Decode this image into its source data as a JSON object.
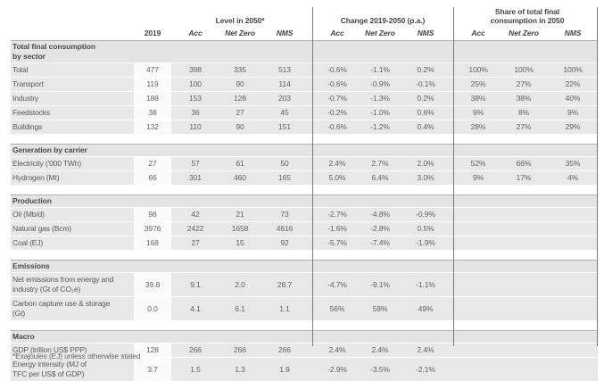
{
  "table": {
    "header": {
      "year_col": "2019",
      "groups": [
        {
          "label": "Level in 2050*",
          "subcols": [
            "Acc",
            "Net Zero",
            "NMS"
          ]
        },
        {
          "label": "Change 2019-2050 (p.a.)",
          "subcols": [
            "Acc",
            "Net Zero",
            "NMS"
          ]
        },
        {
          "label": "Share of total final\nconsumption in 2050",
          "subcols": [
            "Acc",
            "Net Zero",
            "NMS"
          ]
        }
      ]
    },
    "sections": [
      {
        "title": "Total final consumption\nby sector",
        "rows": [
          {
            "label": "Total",
            "y2019": "477",
            "level": [
              "398",
              "335",
              "513"
            ],
            "change": [
              "-0.6%",
              "-1.1%",
              "0.2%"
            ],
            "share": [
              "100%",
              "100%",
              "100%"
            ]
          },
          {
            "label": "Transport",
            "y2019": "119",
            "level": [
              "100",
              "90",
              "114"
            ],
            "change": [
              "-0.6%",
              "-0.9%",
              "-0.1%"
            ],
            "share": [
              "25%",
              "27%",
              "22%"
            ]
          },
          {
            "label": "Industry",
            "y2019": "188",
            "level": [
              "153",
              "128",
              "203"
            ],
            "change": [
              "-0.7%",
              "-1.3%",
              "0.2%"
            ],
            "share": [
              "38%",
              "38%",
              "40%"
            ]
          },
          {
            "label": "Feedstocks",
            "y2019": "38",
            "level": [
              "36",
              "27",
              "45"
            ],
            "change": [
              "-0.2%",
              "-1.0%",
              "0.6%"
            ],
            "share": [
              "9%",
              "8%",
              "9%"
            ]
          },
          {
            "label": "Buildings",
            "y2019": "132",
            "level": [
              "110",
              "90",
              "151"
            ],
            "change": [
              "-0.6%",
              "-1.2%",
              "0.4%"
            ],
            "share": [
              "28%",
              "27%",
              "29%"
            ]
          }
        ]
      },
      {
        "title": "Generation by carrier",
        "rows": [
          {
            "label": "Electricity ('000 TWh)",
            "y2019": "27",
            "level": [
              "57",
              "61",
              "50"
            ],
            "change": [
              "2.4%",
              "2.7%",
              "2.0%"
            ],
            "share": [
              "52%",
              "66%",
              "35%"
            ]
          },
          {
            "label": "Hydrogen (Mt)",
            "y2019": "66",
            "level": [
              "301",
              "460",
              "165"
            ],
            "change": [
              "5.0%",
              "6.4%",
              "3.0%"
            ],
            "share": [
              "9%",
              "17%",
              "4%"
            ]
          }
        ]
      },
      {
        "title": "Production",
        "rows": [
          {
            "label": "Oil (Mb/d)",
            "y2019": "98",
            "level": [
              "42",
              "21",
              "73"
            ],
            "change": [
              "-2.7%",
              "-4.8%",
              "-0.9%"
            ],
            "share": [
              "",
              "",
              ""
            ]
          },
          {
            "label": "Natural gas (Bcm)",
            "y2019": "3976",
            "level": [
              "2422",
              "1658",
              "4616"
            ],
            "change": [
              "-1.6%",
              "-2.8%",
              "0.5%"
            ],
            "share": [
              "",
              "",
              ""
            ]
          },
          {
            "label": "Coal (EJ)",
            "y2019": "168",
            "level": [
              "27",
              "15",
              "92"
            ],
            "change": [
              "-5.7%",
              "-7.4%",
              "-1.9%"
            ],
            "share": [
              "",
              "",
              ""
            ]
          }
        ]
      },
      {
        "title": "Emissions",
        "rows": [
          {
            "label": "Net emissions from energy and\nindustry (Gt of CO₂e)",
            "y2019": "39.8",
            "level": [
              "9.1",
              "2.0",
              "28.7"
            ],
            "change": [
              "-4.7%",
              "-9.1%",
              "-1.1%"
            ],
            "share": [
              "",
              "",
              ""
            ]
          },
          {
            "label": "Carbon capture use & storage\n(Gt)",
            "y2019": "0.0",
            "level": [
              "4.1",
              "6.1",
              "1.1"
            ],
            "change": [
              "56%",
              "58%",
              "49%"
            ],
            "share": [
              "",
              "",
              ""
            ]
          }
        ]
      },
      {
        "title": "Macro",
        "rows": [
          {
            "label": "GDP (trillion US$ PPP)",
            "y2019": "128",
            "level": [
              "266",
              "266",
              "266"
            ],
            "change": [
              "2.4%",
              "2.4%",
              "2.4%"
            ],
            "share": [
              "",
              "",
              ""
            ]
          },
          {
            "label": "Energy intensity (MJ of\nTFC per US$ of GDP)",
            "y2019": "3.7",
            "level": [
              "1.5",
              "1.3",
              "1.9"
            ],
            "change": [
              "-2.9%",
              "-3.5%",
              "-2.1%"
            ],
            "share": [
              "",
              "",
              ""
            ]
          }
        ]
      }
    ],
    "footnote": "*Exajoules (EJ) unless otherwise stated"
  },
  "colors": {
    "row_bg": "#e9e8e6",
    "section_header_bg": "#e5e4e2",
    "year_col_bg": "#fbfbf9",
    "divider": "#7a7977"
  }
}
